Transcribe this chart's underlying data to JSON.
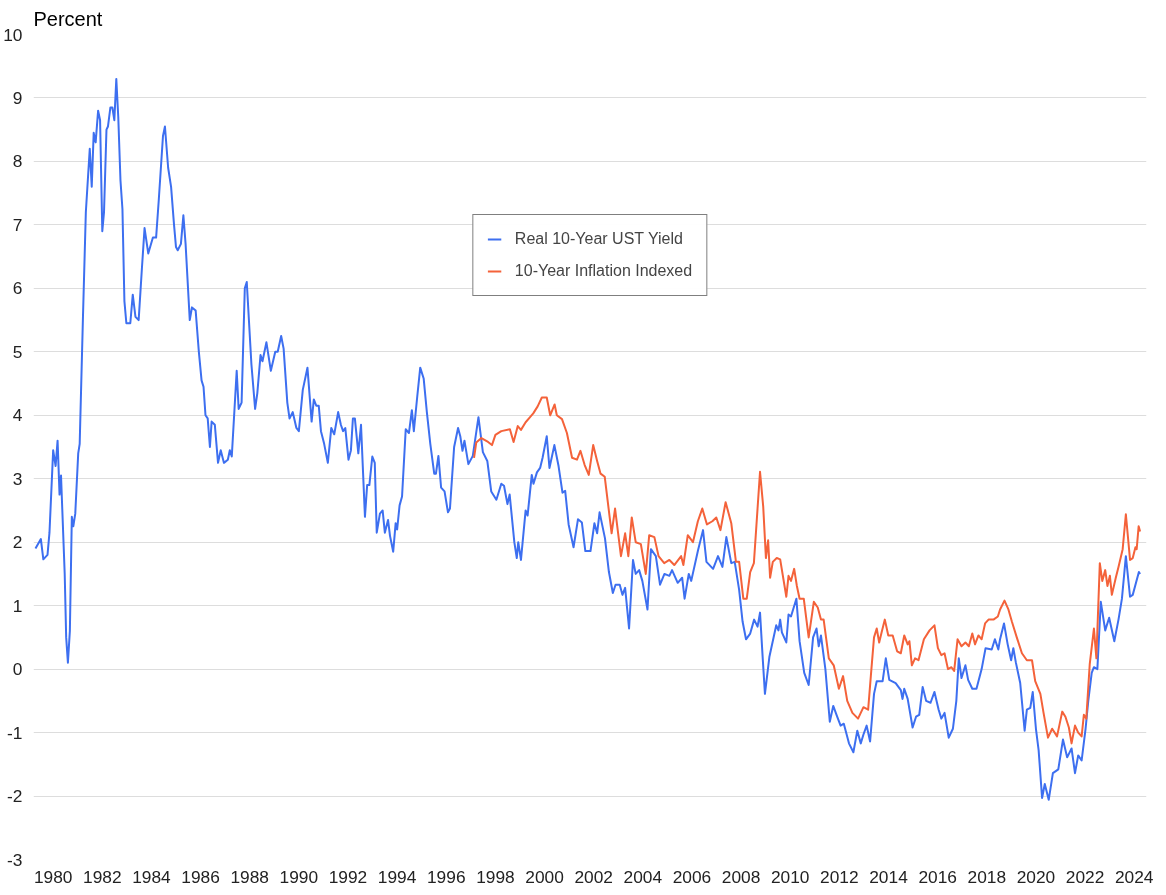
{
  "chart_data": {
    "type": "line",
    "ylabel": "Percent",
    "xlim": [
      1979.2,
      2024.5
    ],
    "xticks": [
      1980,
      1982,
      1984,
      1986,
      1988,
      1990,
      1992,
      1994,
      1996,
      1998,
      2000,
      2002,
      2004,
      2006,
      2008,
      2010,
      2012,
      2014,
      2016,
      2018,
      2020,
      2022,
      2024
    ],
    "ylim": [
      -3,
      10
    ],
    "yticks": [
      -3,
      -2,
      -1,
      0,
      1,
      2,
      3,
      4,
      5,
      6,
      7,
      8,
      9,
      10
    ],
    "grid": "y",
    "legend": "top",
    "line_style": "solid",
    "series": [
      {
        "name": "Real 10-Year UST Yield",
        "color": "#3d6ff0",
        "x": [
          1979.28,
          1979.5,
          1979.6,
          1979.77,
          1979.85,
          1979.96,
          1980.0,
          1980.1,
          1980.18,
          1980.26,
          1980.32,
          1980.47,
          1980.53,
          1980.6,
          1980.68,
          1980.76,
          1980.82,
          1980.9,
          1981.02,
          1981.08,
          1981.21,
          1981.33,
          1981.49,
          1981.57,
          1981.65,
          1981.73,
          1981.83,
          1981.91,
          1982.0,
          1982.07,
          1982.17,
          1982.23,
          1982.33,
          1982.41,
          1982.49,
          1982.57,
          1982.65,
          1982.74,
          1982.82,
          1982.9,
          1982.98,
          1983.14,
          1983.24,
          1983.35,
          1983.48,
          1983.61,
          1983.72,
          1983.87,
          1984.06,
          1984.19,
          1984.3,
          1984.47,
          1984.55,
          1984.68,
          1984.8,
          1984.92,
          1985.0,
          1985.07,
          1985.2,
          1985.3,
          1985.39,
          1985.56,
          1985.65,
          1985.8,
          1985.93,
          1986.04,
          1986.12,
          1986.2,
          1986.29,
          1986.38,
          1986.45,
          1986.58,
          1986.71,
          1986.82,
          1986.95,
          1987.11,
          1987.19,
          1987.27,
          1987.47,
          1987.55,
          1987.67,
          1987.8,
          1987.88,
          1988.07,
          1988.22,
          1988.31,
          1988.44,
          1988.52,
          1988.68,
          1988.86,
          1989.04,
          1989.14,
          1989.28,
          1989.38,
          1989.53,
          1989.62,
          1989.75,
          1989.9,
          1990.0,
          1990.16,
          1990.35,
          1990.52,
          1990.61,
          1990.71,
          1990.81,
          1990.9,
          1991.03,
          1991.18,
          1991.32,
          1991.44,
          1991.6,
          1991.71,
          1991.8,
          1991.89,
          1992.02,
          1992.12,
          1992.2,
          1992.28,
          1992.42,
          1992.53,
          1992.69,
          1992.78,
          1992.87,
          1992.99,
          1993.09,
          1993.17,
          1993.3,
          1993.41,
          1993.5,
          1993.63,
          1993.71,
          1993.84,
          1993.94,
          1994.0,
          1994.1,
          1994.2,
          1994.35,
          1994.48,
          1994.6,
          1994.68,
          1994.82,
          1994.94,
          1995.08,
          1995.21,
          1995.35,
          1995.51,
          1995.58,
          1995.68,
          1995.79,
          1995.93,
          1996.07,
          1996.15,
          1996.32,
          1996.48,
          1996.57,
          1996.66,
          1996.74,
          1996.9,
          1997.08,
          1997.31,
          1997.49,
          1997.67,
          1997.83,
          1998.04,
          1998.24,
          1998.35,
          1998.49,
          1998.58,
          1998.77,
          1998.87,
          1998.93,
          1999.04,
          1999.23,
          1999.31,
          1999.48,
          1999.55,
          1999.69,
          1999.82,
          1999.92,
          2000.09,
          2000.2,
          2000.4,
          2000.57,
          2000.73,
          2000.84,
          2000.98,
          2001.18,
          2001.36,
          2001.52,
          2001.66,
          2001.87,
          2002.03,
          2002.14,
          2002.24,
          2002.46,
          2002.62,
          2002.78,
          2002.89,
          2003.06,
          2003.17,
          2003.28,
          2003.44,
          2003.6,
          2003.71,
          2003.85,
          2003.98,
          2004.19,
          2004.33,
          2004.53,
          2004.7,
          2004.88,
          2005.08,
          2005.19,
          2005.42,
          2005.6,
          2005.7,
          2005.87,
          2005.97,
          2006.24,
          2006.45,
          2006.59,
          2006.86,
          2007.06,
          2007.24,
          2007.4,
          2007.6,
          2007.74,
          2007.92,
          2008.06,
          2008.2,
          2008.37,
          2008.53,
          2008.67,
          2008.77,
          2008.88,
          2008.97,
          2009.15,
          2009.43,
          2009.52,
          2009.59,
          2009.66,
          2009.84,
          2009.93,
          2010.03,
          2010.25,
          2010.38,
          2010.57,
          2010.75,
          2010.93,
          2011.07,
          2011.16,
          2011.25,
          2011.43,
          2011.61,
          2011.75,
          2011.91,
          2012.05,
          2012.18,
          2012.39,
          2012.57,
          2012.73,
          2012.87,
          2012.98,
          2013.11,
          2013.25,
          2013.41,
          2013.52,
          2013.76,
          2013.89,
          2014.03,
          2014.29,
          2014.5,
          2014.57,
          2014.64,
          2014.78,
          2014.98,
          2015.12,
          2015.25,
          2015.39,
          2015.53,
          2015.71,
          2015.87,
          2016.04,
          2016.15,
          2016.28,
          2016.45,
          2016.62,
          2016.76,
          2016.86,
          2016.97,
          2017.13,
          2017.24,
          2017.41,
          2017.58,
          2017.79,
          2017.95,
          2018.2,
          2018.33,
          2018.47,
          2018.54,
          2018.7,
          2018.85,
          2018.99,
          2019.08,
          2019.18,
          2019.36,
          2019.54,
          2019.63,
          2019.77,
          2019.87,
          2020.0,
          2020.11,
          2020.25,
          2020.36,
          2020.52,
          2020.69,
          2020.91,
          2021.1,
          2021.27,
          2021.45,
          2021.59,
          2021.72,
          2021.86,
          2022.02,
          2022.13,
          2022.27,
          2022.36,
          2022.5,
          2022.64,
          2022.82,
          2022.98,
          2023.19,
          2023.36,
          2023.5,
          2023.66,
          2023.83,
          2023.94,
          2024.19,
          2024.24
        ],
        "values": [
          1.9,
          2.05,
          1.73,
          1.8,
          2.15,
          3.1,
          3.45,
          3.2,
          3.6,
          2.75,
          3.05,
          1.5,
          0.5,
          0.1,
          0.6,
          2.4,
          2.25,
          2.45,
          3.4,
          3.55,
          5.5,
          7.2,
          8.2,
          7.6,
          8.45,
          8.3,
          8.8,
          8.65,
          6.9,
          7.2,
          8.5,
          8.55,
          8.85,
          8.85,
          8.65,
          9.3,
          8.7,
          7.7,
          7.25,
          5.8,
          5.45,
          5.45,
          5.9,
          5.55,
          5.5,
          6.3,
          6.95,
          6.55,
          6.8,
          6.8,
          7.4,
          8.4,
          8.55,
          7.9,
          7.6,
          7.0,
          6.65,
          6.6,
          6.7,
          7.15,
          6.7,
          5.5,
          5.7,
          5.65,
          5.0,
          4.55,
          4.45,
          4.0,
          3.95,
          3.5,
          3.9,
          3.85,
          3.25,
          3.45,
          3.25,
          3.3,
          3.45,
          3.35,
          4.7,
          4.1,
          4.2,
          6.0,
          6.1,
          4.8,
          4.1,
          4.35,
          4.95,
          4.85,
          5.15,
          4.7,
          5.0,
          5.0,
          5.25,
          5.05,
          4.2,
          3.95,
          4.05,
          3.8,
          3.75,
          4.4,
          4.75,
          3.9,
          4.25,
          4.15,
          4.15,
          3.75,
          3.55,
          3.25,
          3.8,
          3.7,
          4.05,
          3.85,
          3.75,
          3.8,
          3.3,
          3.45,
          3.95,
          3.95,
          3.4,
          3.85,
          2.4,
          2.9,
          2.9,
          3.35,
          3.25,
          2.15,
          2.45,
          2.5,
          2.15,
          2.35,
          2.1,
          1.85,
          2.3,
          2.2,
          2.58,
          2.72,
          3.78,
          3.72,
          4.08,
          3.75,
          4.3,
          4.75,
          4.58,
          4.05,
          3.55,
          3.08,
          3.08,
          3.36,
          2.86,
          2.8,
          2.47,
          2.53,
          3.5,
          3.8,
          3.67,
          3.44,
          3.6,
          3.23,
          3.36,
          3.97,
          3.42,
          3.28,
          2.8,
          2.67,
          2.92,
          2.89,
          2.6,
          2.75,
          2.0,
          1.75,
          2.0,
          1.72,
          2.5,
          2.42,
          3.06,
          2.92,
          3.1,
          3.17,
          3.33,
          3.67,
          3.17,
          3.53,
          3.2,
          2.78,
          2.81,
          2.28,
          1.92,
          2.36,
          2.31,
          1.86,
          1.86,
          2.3,
          2.14,
          2.47,
          2.06,
          1.53,
          1.2,
          1.33,
          1.33,
          1.17,
          1.28,
          0.64,
          1.72,
          1.5,
          1.56,
          1.39,
          0.94,
          1.89,
          1.78,
          1.33,
          1.5,
          1.47,
          1.56,
          1.36,
          1.44,
          1.11,
          1.5,
          1.39,
          1.86,
          2.19,
          1.69,
          1.58,
          1.78,
          1.61,
          2.08,
          1.67,
          1.69,
          1.25,
          0.75,
          0.47,
          0.56,
          0.78,
          0.67,
          0.89,
          0.17,
          -0.39,
          0.19,
          0.69,
          0.61,
          0.78,
          0.58,
          0.42,
          0.86,
          0.83,
          1.11,
          0.44,
          -0.06,
          -0.25,
          0.5,
          0.64,
          0.36,
          0.53,
          0.0,
          -0.83,
          -0.58,
          -0.75,
          -0.89,
          -0.86,
          -1.17,
          -1.31,
          -0.97,
          -1.17,
          -1.03,
          -0.89,
          -1.14,
          -0.39,
          -0.19,
          -0.19,
          0.17,
          -0.17,
          -0.22,
          -0.33,
          -0.47,
          -0.31,
          -0.47,
          -0.92,
          -0.75,
          -0.72,
          -0.28,
          -0.5,
          -0.53,
          -0.36,
          -0.64,
          -0.78,
          -0.69,
          -1.08,
          -0.94,
          -0.5,
          0.17,
          -0.14,
          0.06,
          -0.17,
          -0.31,
          -0.31,
          0.0,
          0.33,
          0.31,
          0.47,
          0.31,
          0.47,
          0.72,
          0.39,
          0.14,
          0.33,
          0.11,
          -0.22,
          -0.97,
          -0.64,
          -0.61,
          -0.36,
          -0.94,
          -1.28,
          -2.03,
          -1.81,
          -2.06,
          -1.64,
          -1.58,
          -1.11,
          -1.39,
          -1.25,
          -1.64,
          -1.36,
          -1.44,
          -0.94,
          -0.5,
          -0.06,
          0.03,
          0.0,
          1.06,
          0.61,
          0.81,
          0.44,
          0.78,
          1.11,
          1.78,
          1.14,
          1.17,
          1.53,
          1.5
        ]
      },
      {
        "name": "10-Year Inflation Indexed",
        "color": "#f4623a",
        "x": [
          1997.13,
          1997.22,
          1997.43,
          1997.7,
          1997.86,
          1998.0,
          1998.24,
          1998.59,
          1998.74,
          1998.91,
          1999.04,
          1999.23,
          1999.41,
          1999.54,
          1999.72,
          1999.89,
          2000.09,
          2000.23,
          2000.41,
          2000.5,
          2000.71,
          2000.91,
          2001.12,
          2001.32,
          2001.46,
          2001.63,
          2001.8,
          2001.98,
          2002.14,
          2002.28,
          2002.45,
          2002.73,
          2002.87,
          2003.11,
          2003.28,
          2003.41,
          2003.55,
          2003.71,
          2003.92,
          2004.12,
          2004.26,
          2004.47,
          2004.64,
          2004.87,
          2005.08,
          2005.28,
          2005.56,
          2005.65,
          2005.83,
          2006.04,
          2006.24,
          2006.42,
          2006.61,
          2006.83,
          2006.99,
          2007.16,
          2007.37,
          2007.6,
          2007.79,
          2007.92,
          2008.09,
          2008.23,
          2008.37,
          2008.52,
          2008.77,
          2008.9,
          2009.01,
          2009.1,
          2009.18,
          2009.29,
          2009.45,
          2009.59,
          2009.84,
          2009.93,
          2010.03,
          2010.16,
          2010.27,
          2010.38,
          2010.55,
          2010.75,
          2010.96,
          2011.12,
          2011.25,
          2011.36,
          2011.57,
          2011.77,
          2011.98,
          2012.15,
          2012.32,
          2012.53,
          2012.76,
          2012.98,
          2013.17,
          2013.28,
          2013.41,
          2013.52,
          2013.62,
          2013.72,
          2013.85,
          2013.99,
          2014.17,
          2014.35,
          2014.5,
          2014.64,
          2014.78,
          2014.85,
          2014.95,
          2015.08,
          2015.22,
          2015.44,
          2015.67,
          2015.87,
          2016.01,
          2016.15,
          2016.28,
          2016.42,
          2016.56,
          2016.67,
          2016.81,
          2016.97,
          2017.13,
          2017.27,
          2017.41,
          2017.52,
          2017.66,
          2017.79,
          2017.93,
          2018.07,
          2018.27,
          2018.45,
          2018.54,
          2018.72,
          2018.88,
          2019.02,
          2019.22,
          2019.43,
          2019.63,
          2019.84,
          2019.97,
          2020.18,
          2020.31,
          2020.49,
          2020.66,
          2020.86,
          2021.07,
          2021.2,
          2021.34,
          2021.45,
          2021.59,
          2021.72,
          2021.86,
          2021.95,
          2022.05,
          2022.19,
          2022.36,
          2022.46,
          2022.6,
          2022.7,
          2022.82,
          2022.91,
          2023.01,
          2023.09,
          2023.25,
          2023.36,
          2023.53,
          2023.66,
          2023.83,
          2023.94,
          2024.05,
          2024.1,
          2024.18,
          2024.24
        ],
        "values": [
          3.33,
          3.57,
          3.64,
          3.58,
          3.53,
          3.69,
          3.75,
          3.78,
          3.58,
          3.83,
          3.77,
          3.89,
          3.97,
          4.03,
          4.14,
          4.28,
          4.28,
          4.0,
          4.17,
          4.0,
          3.94,
          3.72,
          3.33,
          3.3,
          3.44,
          3.22,
          3.06,
          3.53,
          3.28,
          3.08,
          3.03,
          2.14,
          2.53,
          1.78,
          2.14,
          1.78,
          2.39,
          2.0,
          1.97,
          1.5,
          2.11,
          2.08,
          1.78,
          1.67,
          1.72,
          1.64,
          1.78,
          1.64,
          2.11,
          2.0,
          2.33,
          2.53,
          2.28,
          2.33,
          2.39,
          2.19,
          2.63,
          2.3,
          1.69,
          1.69,
          1.11,
          1.11,
          1.53,
          1.67,
          3.11,
          2.56,
          1.75,
          2.03,
          1.44,
          1.69,
          1.75,
          1.73,
          1.14,
          1.47,
          1.39,
          1.58,
          1.31,
          1.11,
          1.11,
          0.5,
          1.06,
          0.97,
          0.78,
          0.78,
          0.17,
          0.06,
          -0.31,
          -0.11,
          -0.5,
          -0.69,
          -0.78,
          -0.6,
          -0.64,
          -0.11,
          0.5,
          0.64,
          0.42,
          0.58,
          0.78,
          0.53,
          0.53,
          0.28,
          0.25,
          0.53,
          0.39,
          0.44,
          0.06,
          0.17,
          0.14,
          0.47,
          0.61,
          0.69,
          0.33,
          0.22,
          0.25,
          0.0,
          0.03,
          -0.03,
          0.47,
          0.36,
          0.42,
          0.36,
          0.56,
          0.39,
          0.53,
          0.47,
          0.72,
          0.78,
          0.78,
          0.83,
          0.94,
          1.08,
          0.94,
          0.75,
          0.5,
          0.25,
          0.14,
          0.14,
          -0.19,
          -0.39,
          -0.69,
          -1.08,
          -0.94,
          -1.06,
          -0.67,
          -0.75,
          -0.92,
          -1.17,
          -0.89,
          -1.0,
          -1.06,
          -0.72,
          -0.78,
          0.08,
          0.64,
          0.17,
          1.67,
          1.39,
          1.56,
          1.31,
          1.47,
          1.17,
          1.44,
          1.61,
          1.89,
          2.44,
          1.72,
          1.75,
          1.92,
          1.89,
          2.25,
          2.17
        ]
      }
    ]
  }
}
